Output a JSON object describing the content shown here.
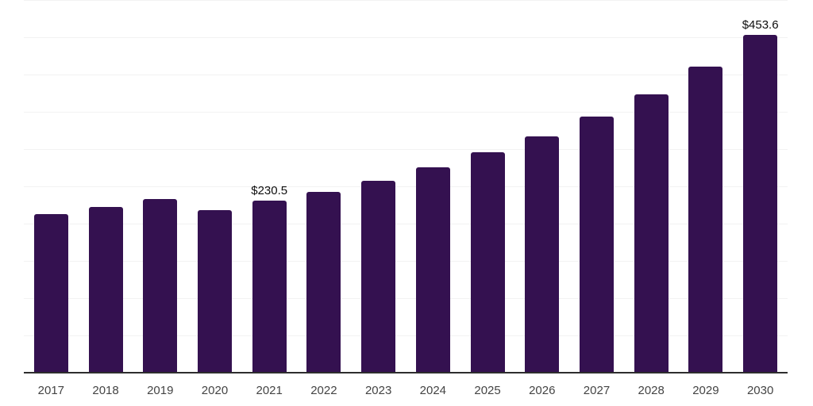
{
  "chart_data": {
    "type": "bar",
    "title": "",
    "xlabel": "",
    "ylabel": "",
    "categories": [
      "2017",
      "2018",
      "2019",
      "2020",
      "2021",
      "2022",
      "2023",
      "2024",
      "2025",
      "2026",
      "2027",
      "2028",
      "2029",
      "2030"
    ],
    "values": [
      213.2,
      222.7,
      233.4,
      217.8,
      230.5,
      242.6,
      257.4,
      275.5,
      295.7,
      317.0,
      344.1,
      373.9,
      410.6,
      453.6
    ],
    "value_labels": {
      "2021": "$230.5",
      "2030": "$453.6"
    },
    "ylim": [
      0,
      500
    ],
    "gridline_step": 50,
    "grid": "horizontal-only",
    "legend": "none",
    "colors": {
      "bar": "#341150",
      "axis_line": "#2e2e2e",
      "gridline": "#f2f2f2",
      "tick_label": "#444444",
      "data_label": "#0d0d0d"
    }
  }
}
